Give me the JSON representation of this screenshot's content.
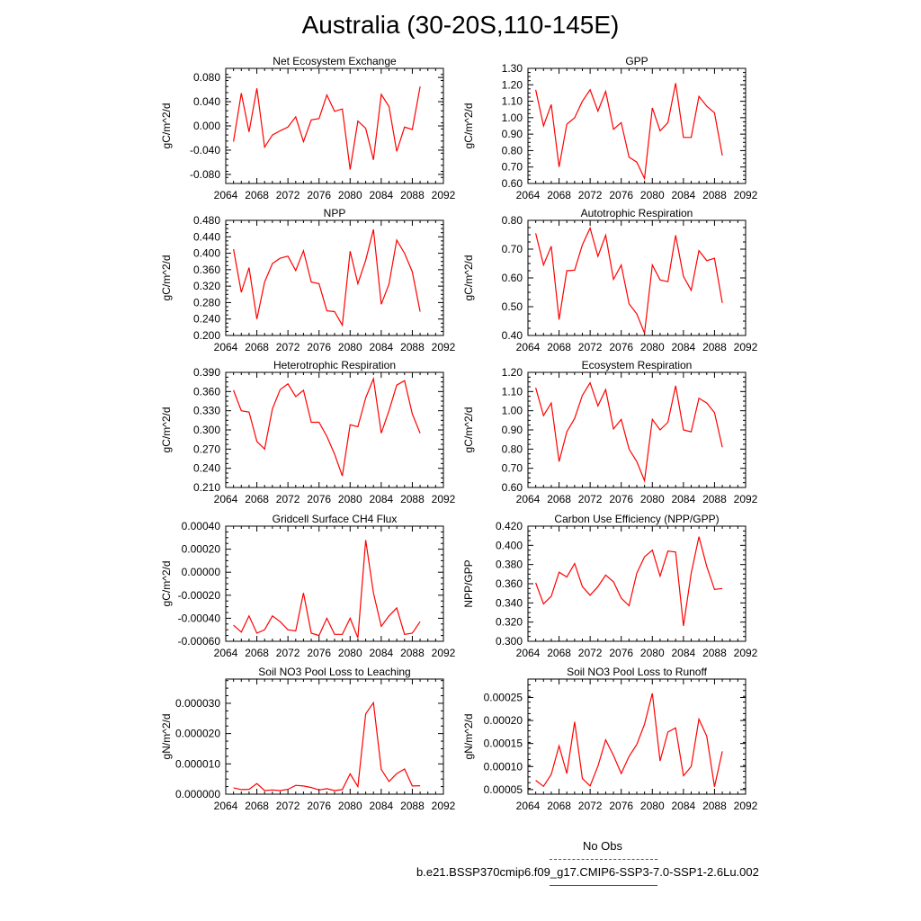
{
  "title": "Australia (30-20S,110-145E)",
  "colors": {
    "series": "#ff0000",
    "obs": "#4444cc",
    "axis": "#000000"
  },
  "legend": {
    "entries": [
      {
        "label": "No Obs",
        "color": "#4444cc",
        "style": "dashed"
      },
      {
        "label": "b.e21.BSSP370cmip6.f09_g17.CMIP6-SSP3-7.0-SSP1-2.6Lu.002",
        "color": "#ff0000",
        "style": "solid"
      }
    ]
  },
  "chart_data": [
    {
      "type": "line",
      "title": "Net Ecosystem Exchange",
      "ylabel": "gC/m^2/d",
      "xlim": [
        2064,
        2092
      ],
      "xticks": [
        "2064",
        "2068",
        "2072",
        "2076",
        "2080",
        "2084",
        "2088",
        "2092"
      ],
      "ylim": [
        -0.095,
        0.095
      ],
      "yticks": [
        "-0.080",
        "-0.040",
        "0.000",
        "0.040",
        "0.080"
      ],
      "x": [
        2065,
        2066,
        2067,
        2068,
        2069,
        2070,
        2071,
        2072,
        2073,
        2074,
        2075,
        2076,
        2077,
        2078,
        2079,
        2080,
        2081,
        2082,
        2083,
        2084,
        2085,
        2086,
        2087,
        2088,
        2089
      ],
      "values": [
        -0.026,
        0.054,
        -0.01,
        0.062,
        -0.035,
        -0.015,
        -0.008,
        -0.002,
        0.015,
        -0.026,
        0.01,
        0.012,
        0.051,
        0.024,
        0.028,
        -0.072,
        0.008,
        -0.004,
        -0.056,
        0.052,
        0.032,
        -0.042,
        -0.002,
        -0.006,
        0.065
      ]
    },
    {
      "type": "line",
      "title": "GPP",
      "ylabel": "gC/m^2/d",
      "xlim": [
        2064,
        2092
      ],
      "xticks": [
        "2064",
        "2068",
        "2072",
        "2076",
        "2080",
        "2084",
        "2088",
        "2092"
      ],
      "ylim": [
        0.6,
        1.3
      ],
      "yticks": [
        "0.60",
        "0.70",
        "0.80",
        "0.90",
        "1.00",
        "1.10",
        "1.20",
        "1.30"
      ],
      "x": [
        2065,
        2066,
        2067,
        2068,
        2069,
        2070,
        2071,
        2072,
        2073,
        2074,
        2075,
        2076,
        2077,
        2078,
        2079,
        2080,
        2081,
        2082,
        2083,
        2084,
        2085,
        2086,
        2087,
        2088,
        2089
      ],
      "values": [
        1.17,
        0.95,
        1.08,
        0.7,
        0.96,
        1.0,
        1.1,
        1.17,
        1.04,
        1.16,
        0.93,
        0.97,
        0.76,
        0.73,
        0.63,
        1.06,
        0.92,
        0.97,
        1.21,
        0.88,
        0.88,
        1.13,
        1.07,
        1.03,
        0.77
      ]
    },
    {
      "type": "line",
      "title": "NPP",
      "ylabel": "gC/m^2/d",
      "xlim": [
        2064,
        2092
      ],
      "xticks": [
        "2064",
        "2068",
        "2072",
        "2076",
        "2080",
        "2084",
        "2088",
        "2092"
      ],
      "ylim": [
        0.2,
        0.48
      ],
      "yticks": [
        "0.200",
        "0.240",
        "0.280",
        "0.320",
        "0.360",
        "0.400",
        "0.440",
        "0.480"
      ],
      "x": [
        2065,
        2066,
        2067,
        2068,
        2069,
        2070,
        2071,
        2072,
        2073,
        2074,
        2075,
        2076,
        2077,
        2078,
        2079,
        2080,
        2081,
        2082,
        2083,
        2084,
        2085,
        2086,
        2087,
        2088,
        2089
      ],
      "values": [
        0.41,
        0.305,
        0.365,
        0.24,
        0.33,
        0.375,
        0.388,
        0.393,
        0.358,
        0.406,
        0.33,
        0.326,
        0.26,
        0.258,
        0.225,
        0.405,
        0.326,
        0.383,
        0.458,
        0.276,
        0.325,
        0.432,
        0.4,
        0.355,
        0.258
      ]
    },
    {
      "type": "line",
      "title": "Autotrophic Respiration",
      "ylabel": "gC/m^2/d",
      "xlim": [
        2064,
        2092
      ],
      "xticks": [
        "2064",
        "2068",
        "2072",
        "2076",
        "2080",
        "2084",
        "2088",
        "2092"
      ],
      "ylim": [
        0.4,
        0.8
      ],
      "yticks": [
        "0.40",
        "0.50",
        "0.60",
        "0.70",
        "0.80"
      ],
      "x": [
        2065,
        2066,
        2067,
        2068,
        2069,
        2070,
        2071,
        2072,
        2073,
        2074,
        2075,
        2076,
        2077,
        2078,
        2079,
        2080,
        2081,
        2082,
        2083,
        2084,
        2085,
        2086,
        2087,
        2088,
        2089
      ],
      "values": [
        0.755,
        0.645,
        0.71,
        0.455,
        0.625,
        0.627,
        0.715,
        0.773,
        0.675,
        0.748,
        0.595,
        0.645,
        0.51,
        0.475,
        0.408,
        0.645,
        0.593,
        0.587,
        0.748,
        0.605,
        0.557,
        0.695,
        0.66,
        0.668,
        0.513
      ]
    },
    {
      "type": "line",
      "title": "Heterotrophic Respiration",
      "ylabel": "gC/m^2/d",
      "xlim": [
        2064,
        2092
      ],
      "xticks": [
        "2064",
        "2068",
        "2072",
        "2076",
        "2080",
        "2084",
        "2088",
        "2092"
      ],
      "ylim": [
        0.21,
        0.39
      ],
      "yticks": [
        "0.210",
        "0.240",
        "0.270",
        "0.300",
        "0.330",
        "0.360",
        "0.390"
      ],
      "x": [
        2065,
        2066,
        2067,
        2068,
        2069,
        2070,
        2071,
        2072,
        2073,
        2074,
        2075,
        2076,
        2077,
        2078,
        2079,
        2080,
        2081,
        2082,
        2083,
        2084,
        2085,
        2086,
        2087,
        2088,
        2089
      ],
      "values": [
        0.362,
        0.33,
        0.328,
        0.282,
        0.27,
        0.333,
        0.363,
        0.372,
        0.352,
        0.362,
        0.312,
        0.312,
        0.29,
        0.262,
        0.228,
        0.308,
        0.305,
        0.35,
        0.38,
        0.295,
        0.33,
        0.37,
        0.377,
        0.325,
        0.295
      ]
    },
    {
      "type": "line",
      "title": "Ecosystem Respiration",
      "ylabel": "gC/m^2/d",
      "xlim": [
        2064,
        2092
      ],
      "xticks": [
        "2064",
        "2068",
        "2072",
        "2076",
        "2080",
        "2084",
        "2088",
        "2092"
      ],
      "ylim": [
        0.6,
        1.2
      ],
      "yticks": [
        "0.60",
        "0.70",
        "0.80",
        "0.90",
        "1.00",
        "1.10",
        "1.20"
      ],
      "x": [
        2065,
        2066,
        2067,
        2068,
        2069,
        2070,
        2071,
        2072,
        2073,
        2074,
        2075,
        2076,
        2077,
        2078,
        2079,
        2080,
        2081,
        2082,
        2083,
        2084,
        2085,
        2086,
        2087,
        2088,
        2089
      ],
      "values": [
        1.12,
        0.975,
        1.04,
        0.735,
        0.89,
        0.96,
        1.08,
        1.145,
        1.025,
        1.11,
        0.905,
        0.955,
        0.8,
        0.735,
        0.635,
        0.955,
        0.9,
        0.94,
        1.13,
        0.9,
        0.89,
        1.065,
        1.04,
        0.99,
        0.81
      ]
    },
    {
      "type": "line",
      "title": "Gridcell Surface CH4 Flux",
      "ylabel": "gC/m^2/d",
      "xlim": [
        2064,
        2092
      ],
      "xticks": [
        "2064",
        "2068",
        "2072",
        "2076",
        "2080",
        "2084",
        "2088",
        "2092"
      ],
      "ylim": [
        -0.0006,
        0.0004
      ],
      "yticks": [
        "-0.00060",
        "-0.00040",
        "-0.00020",
        "0.00000",
        "0.00020",
        "0.00040"
      ],
      "x": [
        2065,
        2066,
        2067,
        2068,
        2069,
        2070,
        2071,
        2072,
        2073,
        2074,
        2075,
        2076,
        2077,
        2078,
        2079,
        2080,
        2081,
        2082,
        2083,
        2084,
        2085,
        2086,
        2087,
        2088,
        2089
      ],
      "values": [
        -0.00046,
        -0.00052,
        -0.00038,
        -0.00053,
        -0.0005,
        -0.00038,
        -0.00043,
        -0.0005,
        -0.00051,
        -0.00018,
        -0.00053,
        -0.00055,
        -0.0004,
        -0.00054,
        -0.00054,
        -0.0004,
        -0.00057,
        0.00028,
        -0.00018,
        -0.00047,
        -0.00038,
        -0.00031,
        -0.00054,
        -0.00053,
        -0.00043
      ]
    },
    {
      "type": "line",
      "title": "Carbon Use Efficiency (NPP/GPP)",
      "ylabel": "NPP/GPP",
      "xlim": [
        2064,
        2092
      ],
      "xticks": [
        "2064",
        "2068",
        "2072",
        "2076",
        "2080",
        "2084",
        "2088",
        "2092"
      ],
      "ylim": [
        0.3,
        0.42
      ],
      "yticks": [
        "0.300",
        "0.320",
        "0.340",
        "0.360",
        "0.380",
        "0.400",
        "0.420"
      ],
      "x": [
        2065,
        2066,
        2067,
        2068,
        2069,
        2070,
        2071,
        2072,
        2073,
        2074,
        2075,
        2076,
        2077,
        2078,
        2079,
        2080,
        2081,
        2082,
        2083,
        2084,
        2085,
        2086,
        2087,
        2088,
        2089
      ],
      "values": [
        0.361,
        0.339,
        0.347,
        0.372,
        0.367,
        0.381,
        0.357,
        0.348,
        0.357,
        0.369,
        0.362,
        0.345,
        0.337,
        0.371,
        0.388,
        0.395,
        0.368,
        0.394,
        0.393,
        0.316,
        0.371,
        0.409,
        0.378,
        0.354,
        0.355
      ]
    },
    {
      "type": "line",
      "title": "Soil NO3 Pool Loss to Leaching",
      "ylabel": "gN/m^2/d",
      "xlim": [
        2064,
        2092
      ],
      "xticks": [
        "2064",
        "2068",
        "2072",
        "2076",
        "2080",
        "2084",
        "2088",
        "2092"
      ],
      "ylim": [
        0.0,
        3.8e-05
      ],
      "yticks": [
        "0.000000",
        "0.000010",
        "0.000020",
        "0.000030"
      ],
      "x": [
        2065,
        2066,
        2067,
        2068,
        2069,
        2070,
        2071,
        2072,
        2073,
        2074,
        2075,
        2076,
        2077,
        2078,
        2079,
        2080,
        2081,
        2082,
        2083,
        2084,
        2085,
        2086,
        2087,
        2088,
        2089
      ],
      "values": [
        2.1e-06,
        1.5e-06,
        1.6e-06,
        3.5e-06,
        1.2e-06,
        1.4e-06,
        1.2e-06,
        1.6e-06,
        2.9e-06,
        2.7e-06,
        2.2e-06,
        1.4e-06,
        1.8e-06,
        1.2e-06,
        1.5e-06,
        6.7e-06,
        2.5e-06,
        2.65e-05,
        3.02e-05,
        8.2e-06,
        4.2e-06,
        6.8e-06,
        8.3e-06,
        2.7e-06,
        2.8e-06
      ]
    },
    {
      "type": "line",
      "title": "Soil NO3 Pool Loss to Runoff",
      "ylabel": "gN/m^2/d",
      "xlim": [
        2064,
        2092
      ],
      "xticks": [
        "2064",
        "2068",
        "2072",
        "2076",
        "2080",
        "2084",
        "2088",
        "2092"
      ],
      "ylim": [
        4e-05,
        0.00029
      ],
      "yticks": [
        "0.00005",
        "0.00010",
        "0.00015",
        "0.00020",
        "0.00025"
      ],
      "x": [
        2065,
        2066,
        2067,
        2068,
        2069,
        2070,
        2071,
        2072,
        2073,
        2074,
        2075,
        2076,
        2077,
        2078,
        2079,
        2080,
        2081,
        2082,
        2083,
        2084,
        2085,
        2086,
        2087,
        2088,
        2089
      ],
      "values": [
        7e-05,
        5.7e-05,
        8.3e-05,
        0.000145,
        8.5e-05,
        0.000197,
        7.4e-05,
        5.8e-05,
        0.000101,
        0.000158,
        0.000124,
        8.5e-05,
        0.000122,
        0.000148,
        0.000192,
        0.000259,
        0.000112,
        0.000175,
        0.000184,
        8e-05,
        0.0001,
        0.000203,
        0.000166,
        5.6e-05,
        0.000133
      ]
    }
  ]
}
